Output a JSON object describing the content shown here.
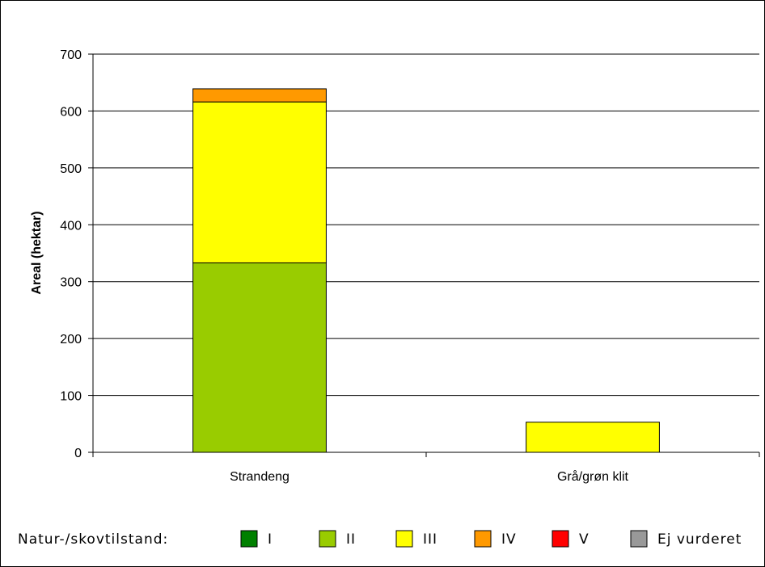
{
  "chart_data": {
    "type": "bar",
    "stacked": true,
    "categories": [
      "Strandeng",
      "Grå/grøn klit"
    ],
    "ylabel": "Areal (hektar)",
    "xlabel": "",
    "ylim": [
      0,
      700
    ],
    "yticks": [
      0,
      100,
      200,
      300,
      400,
      500,
      600,
      700
    ],
    "grid": true,
    "legend_title": "Natur-/skovtilstand:",
    "legend_position": "bottom",
    "series": [
      {
        "name": "I",
        "color": "#008000",
        "values": [
          0,
          0
        ]
      },
      {
        "name": "II",
        "color": "#99CC00",
        "values": [
          333,
          0
        ]
      },
      {
        "name": "III",
        "color": "#FFFF00",
        "values": [
          283,
          53
        ]
      },
      {
        "name": "IV",
        "color": "#FF9900",
        "values": [
          23,
          0
        ]
      },
      {
        "name": "V",
        "color": "#FF0000",
        "values": [
          0,
          0
        ]
      },
      {
        "name": "Ej vurderet",
        "color": "#999999",
        "values": [
          0,
          0
        ]
      }
    ]
  }
}
